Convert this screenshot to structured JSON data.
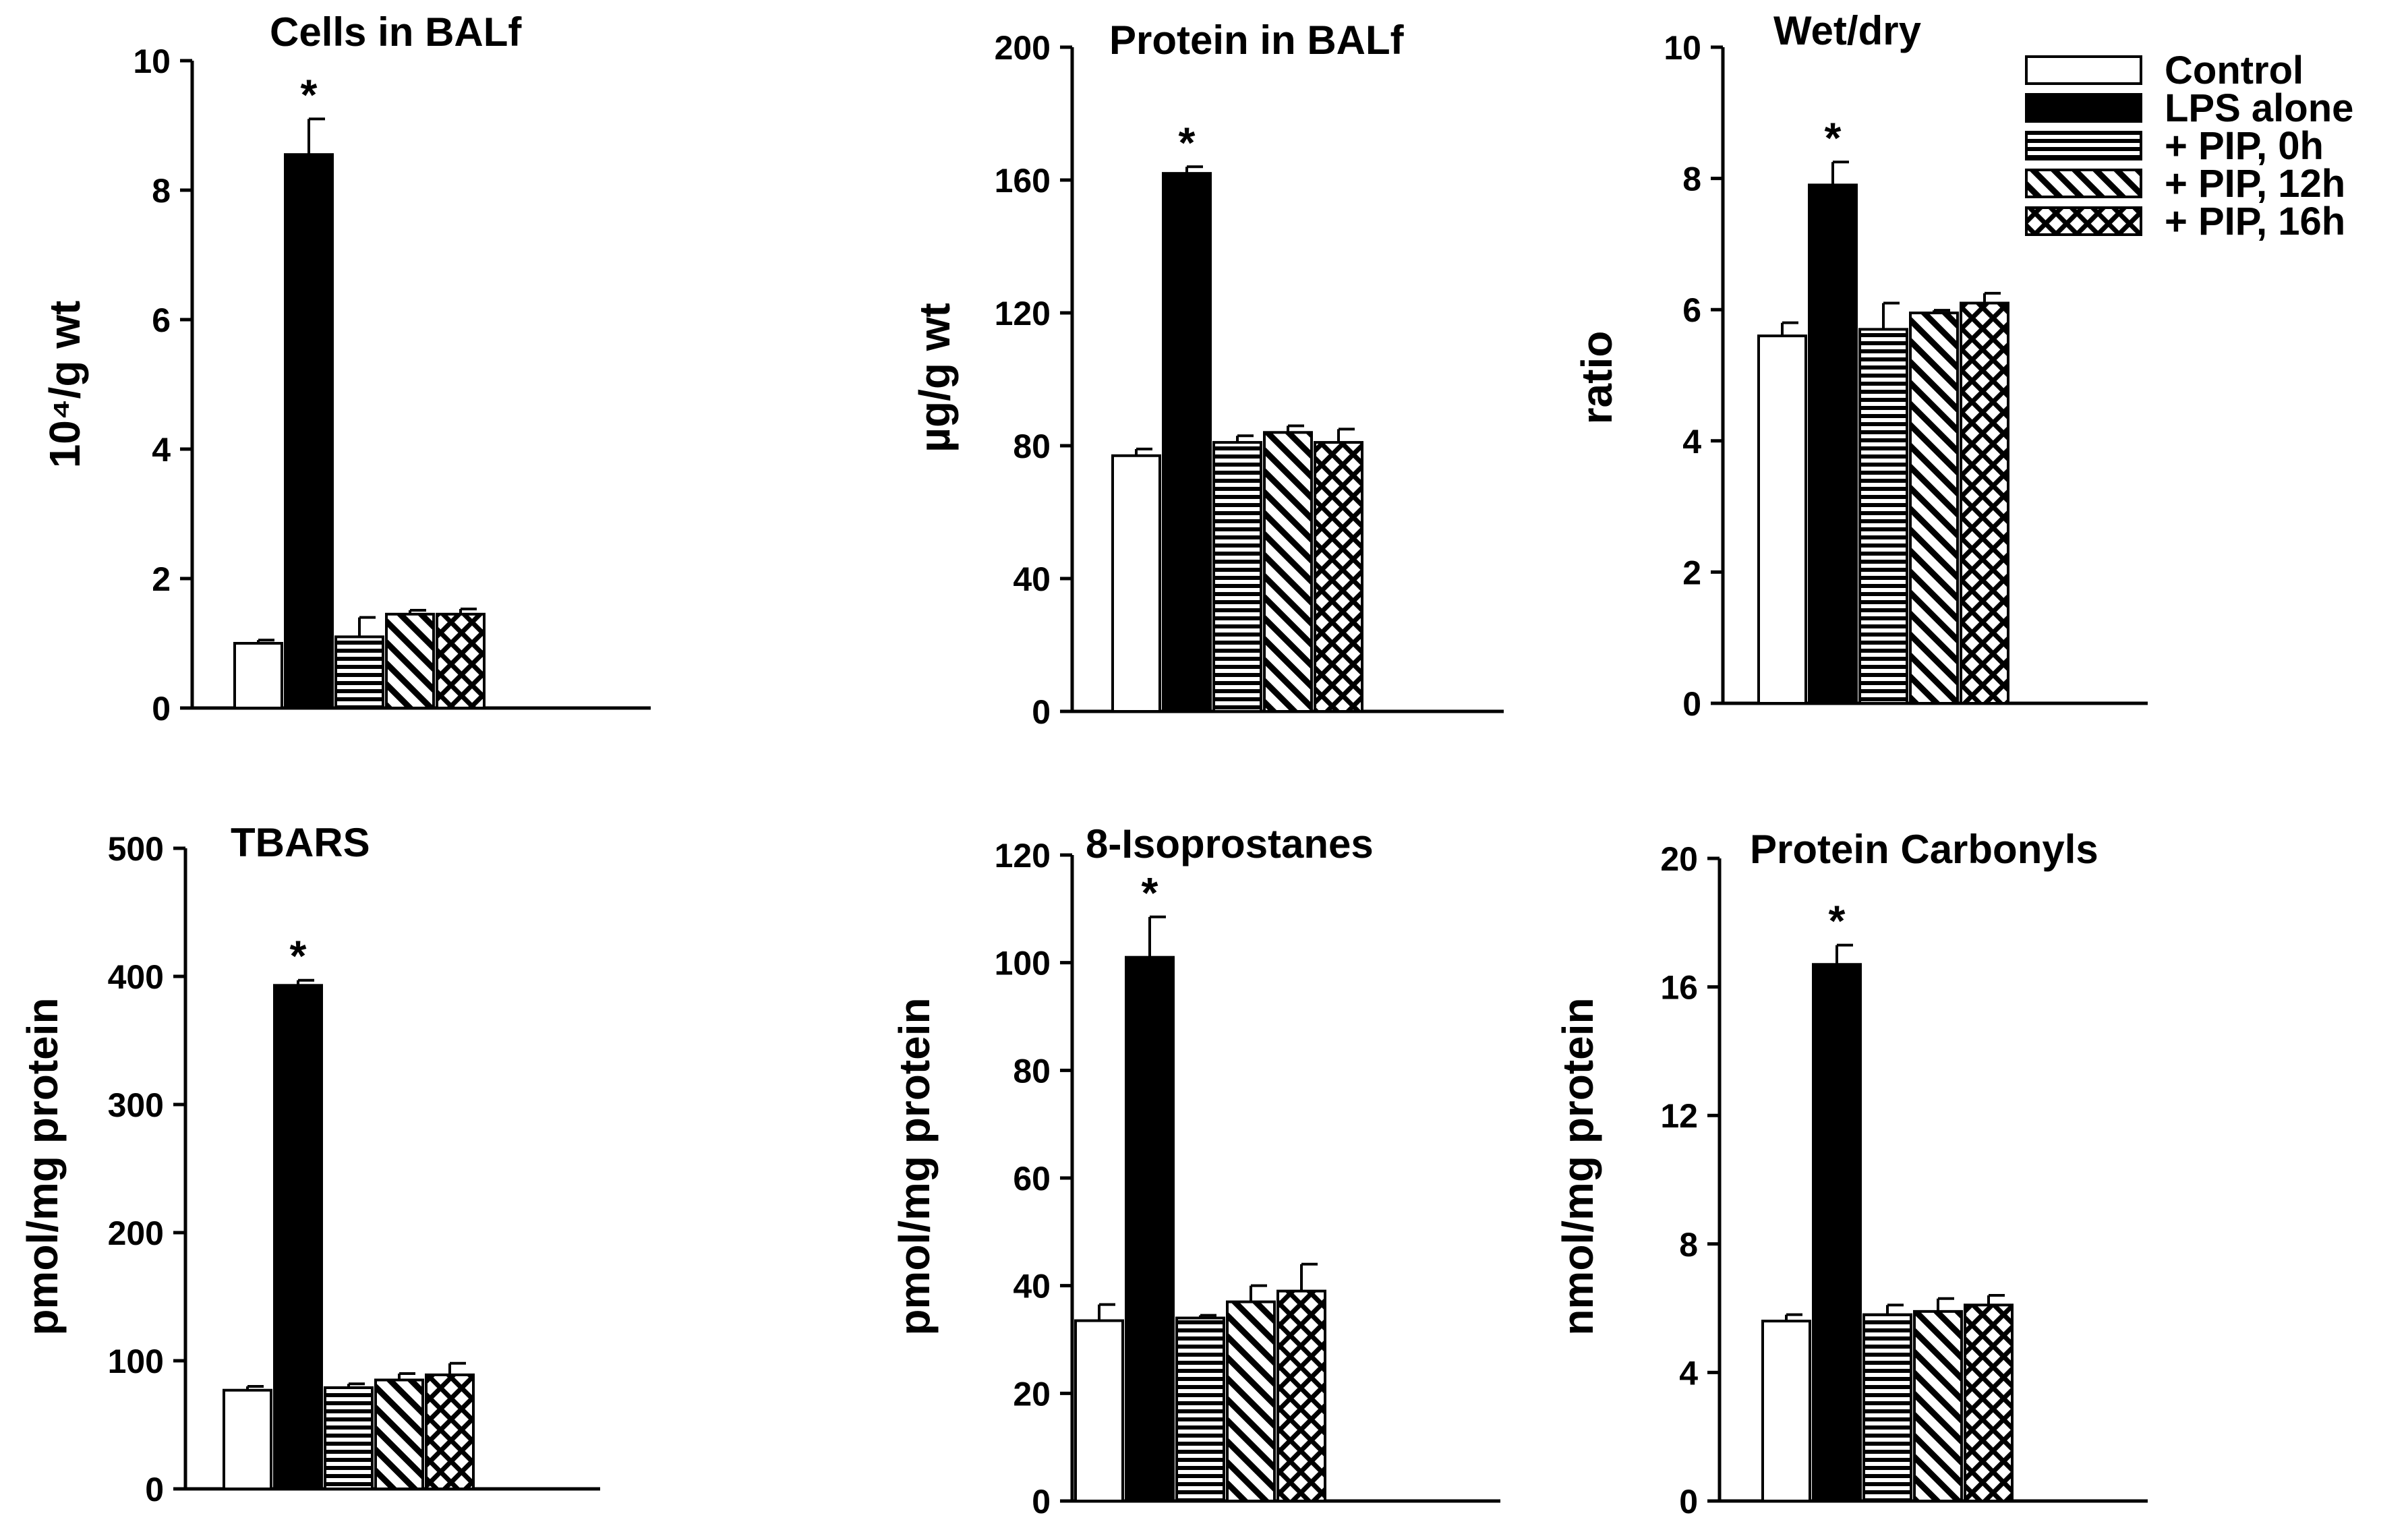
{
  "legend": {
    "entries": [
      {
        "label": "Control",
        "pattern": "white"
      },
      {
        "label": "LPS alone",
        "pattern": "black"
      },
      {
        "label": "+ PIP, 0h",
        "pattern": "hstripe"
      },
      {
        "label": "+ PIP, 12h",
        "pattern": "diag"
      },
      {
        "label": "+ PIP, 16h",
        "pattern": "cross"
      }
    ]
  },
  "chart_data": [
    {
      "type": "bar",
      "title": "Cells in BALf",
      "ylabel": "10⁴/g wt",
      "ylim": [
        0,
        10
      ],
      "yticks": [
        "0",
        "2",
        "4",
        "6",
        "8",
        "10"
      ],
      "series": [
        {
          "name": "Control",
          "value": 1.0,
          "error": 0.05
        },
        {
          "name": "LPS alone",
          "value": 8.55,
          "error": 0.55,
          "significant": true
        },
        {
          "name": "+ PIP, 0h",
          "value": 1.1,
          "error": 0.3
        },
        {
          "name": "+ PIP, 12h",
          "value": 1.45,
          "error": 0.06
        },
        {
          "name": "+ PIP, 16h",
          "value": 1.45,
          "error": 0.08
        }
      ],
      "significance_marker": "*"
    },
    {
      "type": "bar",
      "title": "Protein in BALf",
      "ylabel": "µg/g wt",
      "ylim": [
        0,
        200
      ],
      "yticks": [
        "0",
        "40",
        "80",
        "120",
        "160",
        "200"
      ],
      "series": [
        {
          "name": "Control",
          "value": 77,
          "error": 2
        },
        {
          "name": "LPS alone",
          "value": 162,
          "error": 2,
          "significant": true
        },
        {
          "name": "+ PIP, 0h",
          "value": 81,
          "error": 2
        },
        {
          "name": "+ PIP, 12h",
          "value": 84,
          "error": 2
        },
        {
          "name": "+ PIP, 16h",
          "value": 81,
          "error": 4
        }
      ],
      "significance_marker": "*"
    },
    {
      "type": "bar",
      "title": "Wet/dry",
      "ylabel": "ratio",
      "ylim": [
        0,
        10
      ],
      "yticks": [
        "0",
        "2",
        "4",
        "6",
        "8",
        "10"
      ],
      "series": [
        {
          "name": "Control",
          "value": 5.6,
          "error": 0.2
        },
        {
          "name": "LPS alone",
          "value": 7.9,
          "error": 0.35,
          "significant": true
        },
        {
          "name": "+ PIP, 0h",
          "value": 5.7,
          "error": 0.4
        },
        {
          "name": "+ PIP, 12h",
          "value": 5.95,
          "error": 0.04
        },
        {
          "name": "+ PIP, 16h",
          "value": 6.1,
          "error": 0.15
        }
      ],
      "significance_marker": "*"
    },
    {
      "type": "bar",
      "title": "TBARS",
      "ylabel": "pmol/mg protein",
      "ylim": [
        0,
        500
      ],
      "yticks": [
        "0",
        "100",
        "200",
        "300",
        "400",
        "500"
      ],
      "series": [
        {
          "name": "Control",
          "value": 77,
          "error": 3
        },
        {
          "name": "LPS alone",
          "value": 393,
          "error": 4,
          "significant": true
        },
        {
          "name": "+ PIP, 0h",
          "value": 79,
          "error": 3
        },
        {
          "name": "+ PIP, 12h",
          "value": 85,
          "error": 5
        },
        {
          "name": "+ PIP, 16h",
          "value": 89,
          "error": 9
        }
      ],
      "significance_marker": "*"
    },
    {
      "type": "bar",
      "title": "8-Isoprostanes",
      "ylabel": "pmol/mg protein",
      "ylim": [
        0,
        120
      ],
      "yticks": [
        "0",
        "20",
        "40",
        "60",
        "80",
        "100",
        "120"
      ],
      "series": [
        {
          "name": "Control",
          "value": 33.5,
          "error": 3
        },
        {
          "name": "LPS alone",
          "value": 101,
          "error": 7.5,
          "significant": true
        },
        {
          "name": "+ PIP, 0h",
          "value": 34,
          "error": 0.5
        },
        {
          "name": "+ PIP, 12h",
          "value": 37,
          "error": 3
        },
        {
          "name": "+ PIP, 16h",
          "value": 39,
          "error": 5
        }
      ],
      "significance_marker": "*"
    },
    {
      "type": "bar",
      "title": "Protein Carbonyls",
      "ylabel": "nmol/mg protein",
      "ylim": [
        0,
        20
      ],
      "yticks": [
        "0",
        "4",
        "8",
        "12",
        "16",
        "20"
      ],
      "series": [
        {
          "name": "Control",
          "value": 5.6,
          "error": 0.2
        },
        {
          "name": "LPS alone",
          "value": 16.7,
          "error": 0.6,
          "significant": true
        },
        {
          "name": "+ PIP, 0h",
          "value": 5.8,
          "error": 0.3
        },
        {
          "name": "+ PIP, 12h",
          "value": 5.9,
          "error": 0.4
        },
        {
          "name": "+ PIP, 16h",
          "value": 6.1,
          "error": 0.3
        }
      ],
      "significance_marker": "*"
    }
  ]
}
